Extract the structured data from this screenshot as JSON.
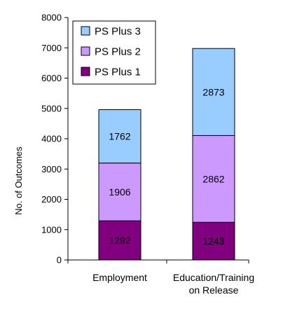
{
  "chart_data": {
    "type": "bar",
    "stacked": true,
    "title": "",
    "xlabel": "",
    "ylabel": "No. of Outcomes",
    "ylim": [
      0,
      8000
    ],
    "yticks": [
      0,
      1000,
      2000,
      3000,
      4000,
      5000,
      6000,
      7000,
      8000
    ],
    "grid": false,
    "legend_position": "top-left",
    "categories": [
      [
        "Employment"
      ],
      [
        "Education/Training",
        "on Release"
      ]
    ],
    "series": [
      {
        "name": "PS Plus 1",
        "values": [
          1292,
          1243
        ],
        "color": "#800080"
      },
      {
        "name": "PS Plus 2",
        "values": [
          1906,
          2862
        ],
        "color": "#cc99ff"
      },
      {
        "name": "PS Plus 3",
        "values": [
          1762,
          2873
        ],
        "color": "#99ccff"
      }
    ],
    "legend_order": [
      2,
      1,
      0
    ]
  }
}
